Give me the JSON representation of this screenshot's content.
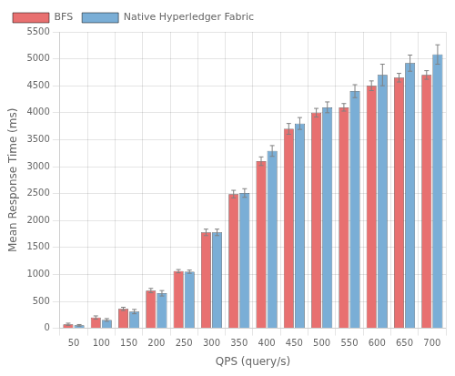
{
  "chart_data": {
    "type": "bar",
    "xlabel": "QPS (query/s)",
    "ylabel": "Mean Response Time (ms)",
    "categories": [
      50,
      100,
      150,
      200,
      250,
      300,
      350,
      400,
      450,
      500,
      550,
      600,
      650,
      700
    ],
    "series": [
      {
        "name": "BFS",
        "color": "#e87070",
        "values": [
          75,
          200,
          360,
          700,
          1060,
          1780,
          2490,
          3100,
          3700,
          4000,
          4100,
          4500,
          4650,
          4700
        ],
        "errors": [
          20,
          30,
          30,
          40,
          30,
          60,
          70,
          80,
          100,
          80,
          70,
          90,
          80,
          80
        ]
      },
      {
        "name": "Native Hyperledger Fabric",
        "color": "#7aaed6",
        "values": [
          55,
          155,
          310,
          650,
          1050,
          1780,
          2510,
          3290,
          3800,
          4100,
          4400,
          4700,
          4920,
          5080
        ],
        "errors": [
          15,
          25,
          40,
          50,
          30,
          60,
          80,
          100,
          110,
          100,
          120,
          200,
          150,
          180
        ]
      }
    ],
    "ylim": [
      0,
      5500
    ],
    "yticks": [
      0,
      500,
      1000,
      1500,
      2000,
      2500,
      3000,
      3500,
      4000,
      4500,
      5000,
      5500
    ],
    "grid": true,
    "legend": "upper left"
  }
}
